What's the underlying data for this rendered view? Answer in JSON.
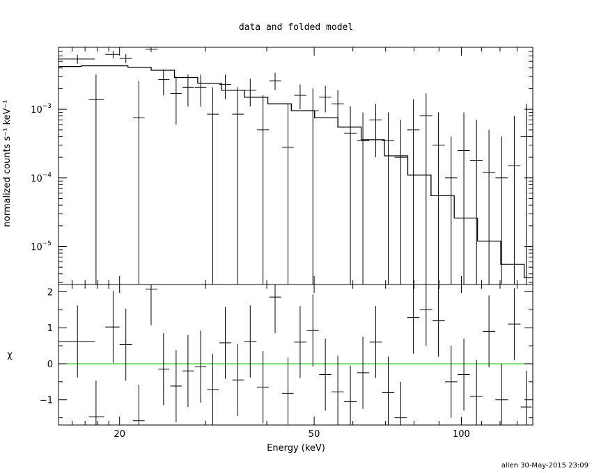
{
  "title": "data and folded model",
  "footer": "allen 30-May-2015 23:09",
  "colors": {
    "axes": "#000000",
    "data": "#000000",
    "model": "#000000",
    "zero_line": "#00c000"
  },
  "chart_data": [
    {
      "type": "line",
      "panel": "upper",
      "xlabel": "",
      "ylabel": "normalized counts s⁻¹ keV⁻¹",
      "xscale": "log",
      "yscale": "log",
      "xlim": [
        15,
        140
      ],
      "ylim": [
        2.8e-06,
        0.008
      ],
      "y_tick_labels": [
        {
          "value": 0.001,
          "base": "10",
          "exp": "−3"
        },
        {
          "value": 0.0001,
          "base": "10",
          "exp": "−4"
        },
        {
          "value": 1e-05,
          "base": "10",
          "exp": "−5"
        }
      ],
      "series": [
        {
          "role": "data",
          "style": "crosses",
          "points": [
            {
              "x": 16.4,
              "xlo": 15.0,
              "xhi": 17.8,
              "y": 0.0054,
              "ylo": 0.0046,
              "yhi": 0.0062
            },
            {
              "x": 17.9,
              "xlo": 17.3,
              "xhi": 18.6,
              "y": 0.00138,
              "ylo": 2.8e-06,
              "yhi": 0.0032
            },
            {
              "x": 19.4,
              "xlo": 18.7,
              "xhi": 20.0,
              "y": 0.0063,
              "ylo": 0.0055,
              "yhi": 0.0071
            },
            {
              "x": 20.6,
              "xlo": 20.0,
              "xhi": 21.2,
              "y": 0.0055,
              "ylo": 0.0047,
              "yhi": 0.0064
            },
            {
              "x": 21.9,
              "xlo": 21.3,
              "xhi": 22.5,
              "y": 0.00075,
              "ylo": 2.8e-06,
              "yhi": 0.0026
            },
            {
              "x": 23.2,
              "xlo": 22.6,
              "xhi": 23.9,
              "y": 0.0075,
              "ylo": 0.0068,
              "yhi": 0.0081
            },
            {
              "x": 24.6,
              "xlo": 24.0,
              "xhi": 25.3,
              "y": 0.0027,
              "ylo": 0.0016,
              "yhi": 0.0038
            },
            {
              "x": 26.1,
              "xlo": 25.4,
              "xhi": 26.8,
              "y": 0.0017,
              "ylo": 0.0006,
              "yhi": 0.003
            },
            {
              "x": 27.6,
              "xlo": 26.9,
              "xhi": 28.4,
              "y": 0.0021,
              "ylo": 0.0011,
              "yhi": 0.0032
            },
            {
              "x": 29.3,
              "xlo": 28.5,
              "xhi": 30.1,
              "y": 0.0021,
              "ylo": 0.0011,
              "yhi": 0.0032
            },
            {
              "x": 31.0,
              "xlo": 30.2,
              "xhi": 31.9,
              "y": 0.00085,
              "ylo": 2.8e-06,
              "yhi": 0.0021
            },
            {
              "x": 32.9,
              "xlo": 32.0,
              "xhi": 33.8,
              "y": 0.0023,
              "ylo": 0.0014,
              "yhi": 0.0032
            },
            {
              "x": 34.9,
              "xlo": 34.0,
              "xhi": 35.9,
              "y": 0.00085,
              "ylo": 2.8e-06,
              "yhi": 0.0021
            },
            {
              "x": 37.0,
              "xlo": 36.0,
              "xhi": 38.1,
              "y": 0.0019,
              "ylo": 0.0011,
              "yhi": 0.0028
            },
            {
              "x": 39.3,
              "xlo": 38.2,
              "xhi": 40.4,
              "y": 0.0005,
              "ylo": 2.8e-06,
              "yhi": 0.0016
            },
            {
              "x": 41.6,
              "xlo": 40.5,
              "xhi": 42.8,
              "y": 0.0026,
              "ylo": 0.0019,
              "yhi": 0.0034
            },
            {
              "x": 44.2,
              "xlo": 43.0,
              "xhi": 45.4,
              "y": 0.00028,
              "ylo": 2.8e-06,
              "yhi": 0.0012
            },
            {
              "x": 46.8,
              "xlo": 45.5,
              "xhi": 48.2,
              "y": 0.0016,
              "ylo": 0.001,
              "yhi": 0.0023
            },
            {
              "x": 49.7,
              "xlo": 48.3,
              "xhi": 51.1,
              "y": 0.00095,
              "ylo": 2.8e-06,
              "yhi": 0.002
            },
            {
              "x": 52.7,
              "xlo": 51.2,
              "xhi": 54.2,
              "y": 0.0015,
              "ylo": 0.0009,
              "yhi": 0.0022
            },
            {
              "x": 55.9,
              "xlo": 54.3,
              "xhi": 57.5,
              "y": 0.0012,
              "ylo": 0.0006,
              "yhi": 0.0019
            },
            {
              "x": 59.3,
              "xlo": 57.6,
              "xhi": 61.1,
              "y": 0.00045,
              "ylo": 2.8e-06,
              "yhi": 0.0011
            },
            {
              "x": 62.9,
              "xlo": 61.2,
              "xhi": 64.8,
              "y": 0.00035,
              "ylo": 2.8e-06,
              "yhi": 0.0009
            },
            {
              "x": 66.8,
              "xlo": 64.9,
              "xhi": 68.8,
              "y": 0.0007,
              "ylo": 0.0002,
              "yhi": 0.0012
            },
            {
              "x": 70.9,
              "xlo": 68.9,
              "xhi": 72.9,
              "y": 0.00035,
              "ylo": 2.8e-06,
              "yhi": 0.0009
            },
            {
              "x": 75.2,
              "xlo": 73.0,
              "xhi": 77.4,
              "y": 0.0002,
              "ylo": 2.8e-06,
              "yhi": 0.0007
            },
            {
              "x": 79.8,
              "xlo": 77.5,
              "xhi": 82.1,
              "y": 0.0005,
              "ylo": 2.8e-06,
              "yhi": 0.0014
            },
            {
              "x": 84.7,
              "xlo": 82.2,
              "xhi": 87.2,
              "y": 0.0008,
              "ylo": 2.8e-06,
              "yhi": 0.0017
            },
            {
              "x": 89.8,
              "xlo": 87.3,
              "xhi": 92.5,
              "y": 0.0003,
              "ylo": 2.8e-06,
              "yhi": 0.0009
            },
            {
              "x": 95.3,
              "xlo": 92.6,
              "xhi": 98.1,
              "y": 0.0001,
              "ylo": 2.8e-06,
              "yhi": 0.0004
            },
            {
              "x": 101.2,
              "xlo": 98.2,
              "xhi": 104.1,
              "y": 0.00025,
              "ylo": 2.8e-06,
              "yhi": 0.0009
            },
            {
              "x": 107.4,
              "xlo": 104.2,
              "xhi": 110.5,
              "y": 0.00018,
              "ylo": 2.8e-06,
              "yhi": 0.0007
            },
            {
              "x": 113.9,
              "xlo": 110.6,
              "xhi": 117.3,
              "y": 0.00012,
              "ylo": 2.8e-06,
              "yhi": 0.0005
            },
            {
              "x": 120.9,
              "xlo": 117.4,
              "xhi": 124.4,
              "y": 0.0001,
              "ylo": 2.8e-06,
              "yhi": 0.0004
            },
            {
              "x": 128.3,
              "xlo": 124.5,
              "xhi": 132.1,
              "y": 0.00015,
              "ylo": 2.8e-06,
              "yhi": 0.0008
            },
            {
              "x": 135.7,
              "xlo": 132.2,
              "xhi": 139.3,
              "y": 0.0004,
              "ylo": 2.8e-06,
              "yhi": 0.0012
            }
          ]
        },
        {
          "role": "model",
          "style": "histogram",
          "edges": [
            15,
            16.7,
            18.7,
            20.8,
            23.2,
            25.9,
            28.9,
            32.3,
            36.0,
            40.2,
            44.9,
            50.1,
            55.9,
            62.4,
            69.6,
            77.7,
            86.7,
            96.7,
            107.9,
            120.4,
            134.4,
            140
          ],
          "values": [
            0.0042,
            0.0043,
            0.0043,
            0.0041,
            0.0037,
            0.0029,
            0.0024,
            0.0019,
            0.0015,
            0.0012,
            0.00095,
            0.00075,
            0.00055,
            0.00036,
            0.00021,
            0.00011,
            5.5e-05,
            2.6e-05,
            1.2e-05,
            5.5e-06,
            3.5e-06
          ]
        }
      ]
    },
    {
      "type": "scatter",
      "panel": "lower",
      "xlabel": "Energy (keV)",
      "ylabel": "χ",
      "xscale": "log",
      "xlim": [
        15,
        140
      ],
      "ylim": [
        -1.7,
        2.2
      ],
      "x_ticks": [
        20,
        50,
        100
      ],
      "x_tick_labels": [
        "20",
        "50",
        "100"
      ],
      "y_ticks": [
        -1,
        0,
        1,
        2
      ],
      "y_tick_labels": [
        "−1",
        "0",
        "1",
        "2"
      ],
      "reference_line": 0,
      "points": [
        {
          "x": 16.4,
          "xlo": 15.0,
          "xhi": 17.8,
          "y": 0.62,
          "ylo": -0.38,
          "yhi": 1.62
        },
        {
          "x": 17.9,
          "xlo": 17.3,
          "xhi": 18.6,
          "y": -1.47,
          "ylo": -2.2,
          "yhi": -0.47
        },
        {
          "x": 19.4,
          "xlo": 18.7,
          "xhi": 20.0,
          "y": 1.02,
          "ylo": 0.02,
          "yhi": 2.02
        },
        {
          "x": 20.6,
          "xlo": 20.0,
          "xhi": 21.2,
          "y": 0.53,
          "ylo": -0.47,
          "yhi": 1.53
        },
        {
          "x": 21.9,
          "xlo": 21.3,
          "xhi": 22.5,
          "y": -1.58,
          "ylo": -2.2,
          "yhi": -0.58
        },
        {
          "x": 23.2,
          "xlo": 22.6,
          "xhi": 23.9,
          "y": 2.07,
          "ylo": 1.07,
          "yhi": 3.07
        },
        {
          "x": 24.6,
          "xlo": 24.0,
          "xhi": 25.3,
          "y": -0.15,
          "ylo": -1.15,
          "yhi": 0.85
        },
        {
          "x": 26.1,
          "xlo": 25.4,
          "xhi": 26.8,
          "y": -0.62,
          "ylo": -1.62,
          "yhi": 0.38
        },
        {
          "x": 27.6,
          "xlo": 26.9,
          "xhi": 28.4,
          "y": -0.2,
          "ylo": -1.2,
          "yhi": 0.8
        },
        {
          "x": 29.3,
          "xlo": 28.5,
          "xhi": 30.1,
          "y": -0.08,
          "ylo": -1.08,
          "yhi": 0.92
        },
        {
          "x": 31.0,
          "xlo": 30.2,
          "xhi": 31.9,
          "y": -0.72,
          "ylo": -1.72,
          "yhi": 0.28
        },
        {
          "x": 32.9,
          "xlo": 32.0,
          "xhi": 33.8,
          "y": 0.58,
          "ylo": -0.42,
          "yhi": 1.58
        },
        {
          "x": 34.9,
          "xlo": 34.0,
          "xhi": 35.9,
          "y": -0.45,
          "ylo": -1.45,
          "yhi": 0.55
        },
        {
          "x": 37.0,
          "xlo": 36.0,
          "xhi": 38.1,
          "y": 0.62,
          "ylo": -0.38,
          "yhi": 1.62
        },
        {
          "x": 39.3,
          "xlo": 38.2,
          "xhi": 40.4,
          "y": -0.65,
          "ylo": -1.65,
          "yhi": 0.35
        },
        {
          "x": 41.6,
          "xlo": 40.5,
          "xhi": 42.8,
          "y": 1.85,
          "ylo": 0.85,
          "yhi": 2.85
        },
        {
          "x": 44.2,
          "xlo": 43.0,
          "xhi": 45.4,
          "y": -0.82,
          "ylo": -1.82,
          "yhi": 0.18
        },
        {
          "x": 46.8,
          "xlo": 45.5,
          "xhi": 48.2,
          "y": 0.6,
          "ylo": -0.4,
          "yhi": 1.6
        },
        {
          "x": 49.7,
          "xlo": 48.3,
          "xhi": 51.1,
          "y": 0.92,
          "ylo": -0.08,
          "yhi": 1.92
        },
        {
          "x": 52.7,
          "xlo": 51.2,
          "xhi": 54.2,
          "y": -0.3,
          "ylo": -1.3,
          "yhi": 0.7
        },
        {
          "x": 55.9,
          "xlo": 54.3,
          "xhi": 57.5,
          "y": -0.78,
          "ylo": -1.78,
          "yhi": 0.22
        },
        {
          "x": 59.3,
          "xlo": 57.6,
          "xhi": 61.1,
          "y": -1.05,
          "ylo": -2.05,
          "yhi": -0.05
        },
        {
          "x": 62.9,
          "xlo": 61.2,
          "xhi": 64.8,
          "y": -0.25,
          "ylo": -1.25,
          "yhi": 0.75
        },
        {
          "x": 66.8,
          "xlo": 64.9,
          "xhi": 68.8,
          "y": 0.6,
          "ylo": -0.4,
          "yhi": 1.6
        },
        {
          "x": 70.9,
          "xlo": 68.9,
          "xhi": 72.9,
          "y": -0.8,
          "ylo": -1.8,
          "yhi": 0.2
        },
        {
          "x": 75.2,
          "xlo": 73.0,
          "xhi": 77.4,
          "y": -1.5,
          "ylo": -2.2,
          "yhi": -0.5
        },
        {
          "x": 79.8,
          "xlo": 77.5,
          "xhi": 82.1,
          "y": 1.28,
          "ylo": 0.28,
          "yhi": 2.28
        },
        {
          "x": 84.7,
          "xlo": 82.2,
          "xhi": 87.2,
          "y": 1.5,
          "ylo": 0.5,
          "yhi": 2.5
        },
        {
          "x": 89.8,
          "xlo": 87.3,
          "xhi": 92.5,
          "y": 1.2,
          "ylo": 0.2,
          "yhi": 2.2
        },
        {
          "x": 95.3,
          "xlo": 92.6,
          "xhi": 98.1,
          "y": -0.5,
          "ylo": -1.5,
          "yhi": 0.5
        },
        {
          "x": 101.2,
          "xlo": 98.2,
          "xhi": 104.1,
          "y": -0.3,
          "ylo": -1.3,
          "yhi": 0.7
        },
        {
          "x": 107.4,
          "xlo": 104.2,
          "xhi": 110.5,
          "y": -0.9,
          "ylo": -1.9,
          "yhi": 0.1
        },
        {
          "x": 113.9,
          "xlo": 110.6,
          "xhi": 117.3,
          "y": 0.9,
          "ylo": -0.1,
          "yhi": 1.9
        },
        {
          "x": 120.9,
          "xlo": 117.4,
          "xhi": 124.4,
          "y": -1.0,
          "ylo": -2.0,
          "yhi": 0.0
        },
        {
          "x": 128.3,
          "xlo": 124.5,
          "xhi": 132.1,
          "y": 1.1,
          "ylo": 0.1,
          "yhi": 2.1
        },
        {
          "x": 135.7,
          "xlo": 132.2,
          "xhi": 139.3,
          "y": -1.2,
          "ylo": -2.2,
          "yhi": -0.2
        }
      ]
    }
  ]
}
